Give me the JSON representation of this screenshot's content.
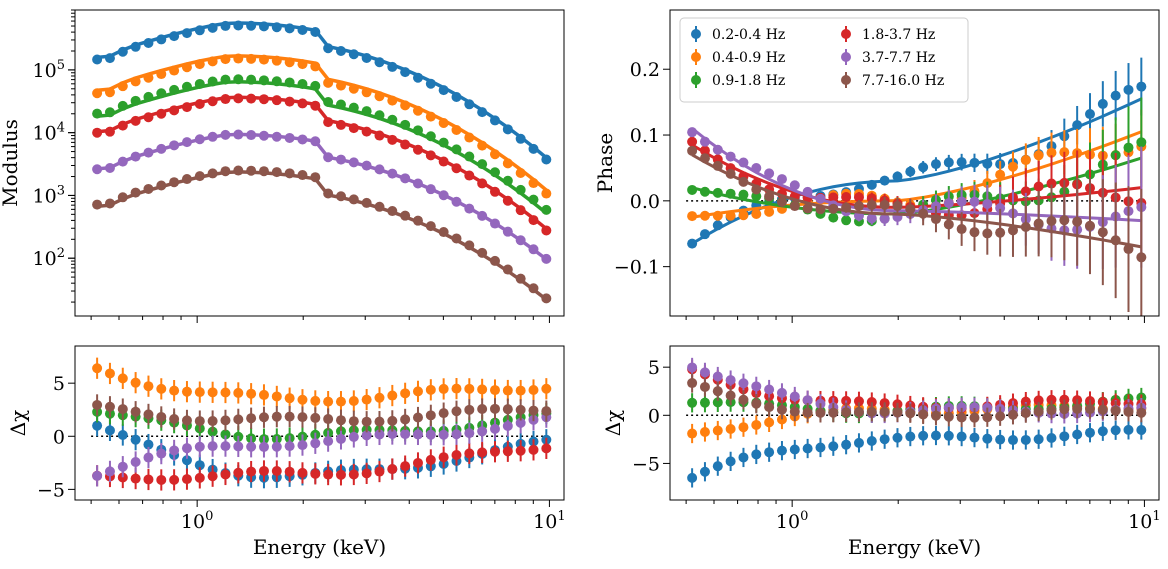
{
  "colors": {
    "0.2-0.4 Hz": "#1f77b4",
    "0.4-0.9 Hz": "#ff7f0e",
    "0.9-1.8 Hz": "#2ca02c",
    "1.8-3.7 Hz": "#d62728",
    "3.7-7.7 Hz": "#9467bd",
    "7.7-16.0 Hz": "#8c564b"
  },
  "chart_data": [
    {
      "id": "modulus",
      "type": "scatter",
      "xscale": "log",
      "yscale": "log",
      "xlim": [
        0.45,
        11
      ],
      "ylim": [
        12,
        900000
      ],
      "ylabel": "Modulus",
      "xlabel": "",
      "xtick_labels": [
        {
          "v": 1,
          "t": "10^0"
        },
        {
          "v": 10,
          "t": "10^1"
        }
      ],
      "ytick_labels": [
        {
          "v": 100,
          "t": "10^2"
        },
        {
          "v": 1000,
          "t": "10^3"
        },
        {
          "v": 10000,
          "t": "10^4"
        },
        {
          "v": 100000,
          "t": "10^5"
        }
      ],
      "reference_line": null,
      "series": [
        {
          "name": "0.2-0.4 Hz",
          "peak": 520000,
          "end": 3900,
          "model_offset": 1.08
        },
        {
          "name": "0.4-0.9 Hz",
          "peak": 150000,
          "end": 1150,
          "model_offset": 1.12
        },
        {
          "name": "0.9-1.8 Hz",
          "peak": 72000,
          "end": 620,
          "model_offset": 0.9
        },
        {
          "name": "1.8-3.7 Hz",
          "peak": 35000,
          "end": 300,
          "model_offset": 1.05
        },
        {
          "name": "3.7-7.7 Hz",
          "peak": 9400,
          "end": 105,
          "model_offset": 1.0
        },
        {
          "name": "7.7-16.0 Hz",
          "peak": 2500,
          "end": 25,
          "model_offset": 0.95
        }
      ]
    },
    {
      "id": "phase",
      "type": "scatter",
      "xscale": "log",
      "yscale": "linear",
      "xlim": [
        0.45,
        11
      ],
      "ylim": [
        -0.175,
        0.29
      ],
      "ylabel": "Phase",
      "xlabel": "",
      "xtick_labels": [
        {
          "v": 1,
          "t": "10^0"
        },
        {
          "v": 10,
          "t": "10^1"
        }
      ],
      "ytick_labels": [
        {
          "v": -0.1,
          "t": "−0.1"
        },
        {
          "v": 0,
          "t": "0.0"
        },
        {
          "v": 0.1,
          "t": "0.1"
        },
        {
          "v": 0.2,
          "t": "0.2"
        }
      ],
      "reference_line": 0,
      "legend": "top-left",
      "series": [
        {
          "name": "0.2-0.4 Hz",
          "start": -0.065,
          "end": 0.155,
          "mid": 0.03
        },
        {
          "name": "0.4-0.9 Hz",
          "start": -0.025,
          "end": 0.105,
          "mid": 0.0
        },
        {
          "name": "0.9-1.8 Hz",
          "start": 0.02,
          "end": 0.065,
          "mid": -0.02
        },
        {
          "name": "1.8-3.7 Hz",
          "start": 0.085,
          "end": 0.02,
          "mid": -0.01
        },
        {
          "name": "3.7-7.7 Hz",
          "start": 0.11,
          "end": -0.03,
          "mid": -0.015
        },
        {
          "name": "7.7-16.0 Hz",
          "start": 0.07,
          "end": -0.07,
          "mid": -0.02
        }
      ]
    },
    {
      "id": "residual-modulus",
      "type": "scatter",
      "xscale": "log",
      "yscale": "linear",
      "xlim": [
        0.45,
        11
      ],
      "ylim": [
        -6,
        8.5
      ],
      "ylabel": "Δχ",
      "xlabel": "Energy (keV)",
      "xtick_labels": [
        {
          "v": 1,
          "t": "10^0"
        },
        {
          "v": 10,
          "t": "10^1"
        }
      ],
      "ytick_labels": [
        {
          "v": -5,
          "t": "−5"
        },
        {
          "v": 0,
          "t": "0"
        },
        {
          "v": 5,
          "t": "5"
        }
      ],
      "reference_line": 0,
      "series": [
        {
          "name": "0.2-0.4 Hz",
          "start": 1.0,
          "mid": -3.8,
          "end": -0.6
        },
        {
          "name": "0.4-0.9 Hz",
          "start": 6.3,
          "mid": 3.5,
          "end": 4.8
        },
        {
          "name": "0.9-1.8 Hz",
          "start": 2.5,
          "mid": 0.0,
          "end": 1.8
        },
        {
          "name": "1.8-3.7 Hz",
          "start": -4.0,
          "mid": -3.6,
          "end": -0.8
        },
        {
          "name": "3.7-7.7 Hz",
          "start": -3.4,
          "mid": -0.6,
          "end": 1.5
        },
        {
          "name": "7.7-16.0 Hz",
          "start": 2.6,
          "mid": 1.5,
          "end": 2.6
        }
      ]
    },
    {
      "id": "residual-phase",
      "type": "scatter",
      "xscale": "log",
      "yscale": "linear",
      "xlim": [
        0.45,
        11
      ],
      "ylim": [
        -8.8,
        7.2
      ],
      "ylabel": "Δχ",
      "xlabel": "Energy (keV)",
      "xtick_labels": [
        {
          "v": 1,
          "t": "10^0"
        },
        {
          "v": 10,
          "t": "10^1"
        }
      ],
      "ytick_labels": [
        {
          "v": -5,
          "t": "−5"
        },
        {
          "v": 0,
          "t": "0"
        },
        {
          "v": 5,
          "t": "5"
        }
      ],
      "reference_line": 0,
      "series": [
        {
          "name": "0.2-0.4 Hz",
          "start": -6.5,
          "mid": -2.5,
          "end": -1.8
        },
        {
          "name": "0.4-0.9 Hz",
          "start": -2.0,
          "mid": 0.5,
          "end": 1.0
        },
        {
          "name": "0.9-1.8 Hz",
          "start": 1.5,
          "mid": 0.5,
          "end": 1.5
        },
        {
          "name": "1.8-3.7 Hz",
          "start": 4.5,
          "mid": 1.0,
          "end": 1.5
        },
        {
          "name": "3.7-7.7 Hz",
          "start": 5.3,
          "mid": 0.5,
          "end": 0.5
        },
        {
          "name": "7.7-16.0 Hz",
          "start": 3.0,
          "mid": 0.0,
          "end": 0.5
        }
      ]
    }
  ],
  "legend_entries": [
    "0.2-0.4 Hz",
    "0.4-0.9 Hz",
    "0.9-1.8 Hz",
    "1.8-3.7 Hz",
    "3.7-7.7 Hz",
    "7.7-16.0 Hz"
  ]
}
